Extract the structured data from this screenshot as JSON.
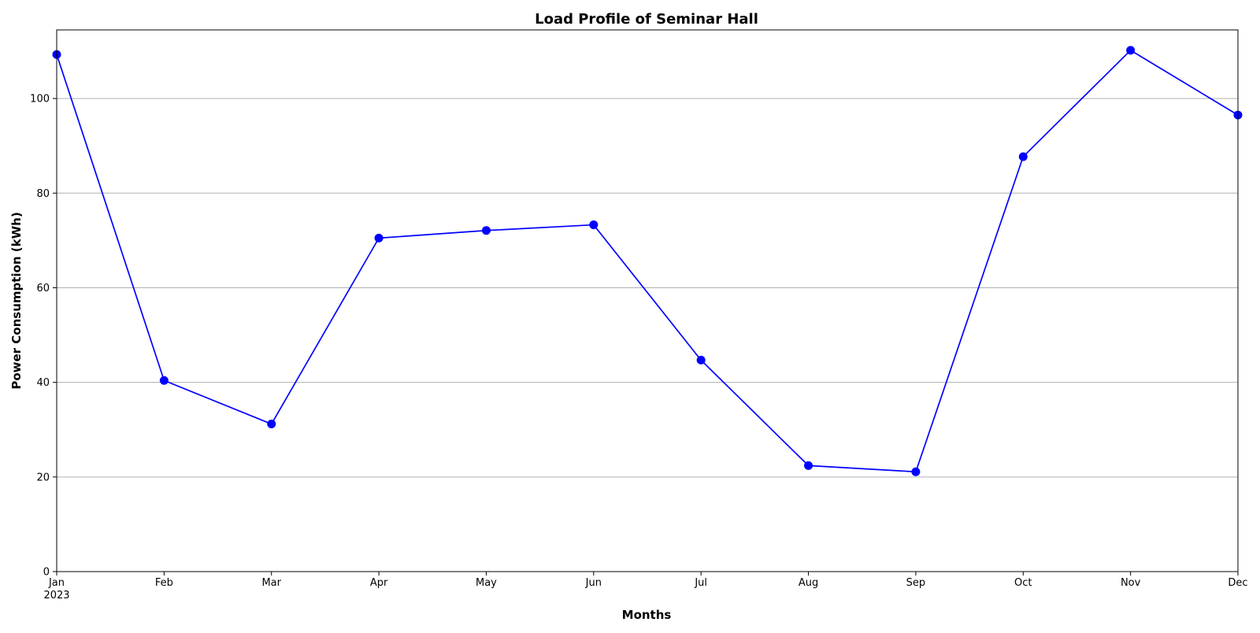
{
  "chart_data": {
    "type": "line",
    "title": "Load Profile of Seminar Hall",
    "xlabel": "Months",
    "ylabel": "Power Consumption (kWh)",
    "categories": [
      "Jan",
      "Feb",
      "Mar",
      "Apr",
      "May",
      "Jun",
      "Jul",
      "Aug",
      "Sep",
      "Oct",
      "Nov",
      "Dec"
    ],
    "year_label": "2023",
    "series": [
      {
        "values": [
          109.3,
          40.4,
          31.2,
          70.5,
          72.1,
          73.3,
          44.7,
          22.4,
          21.1,
          87.7,
          110.2,
          96.5
        ]
      }
    ],
    "ylim": [
      0,
      114.5
    ],
    "yticks": [
      0,
      20,
      40,
      60,
      80,
      100
    ],
    "grid": "horizontal",
    "colors": {
      "line": "#0000ff",
      "marker": "#0000ff",
      "grid": "#b0b0b0",
      "frame": "#000000"
    }
  }
}
